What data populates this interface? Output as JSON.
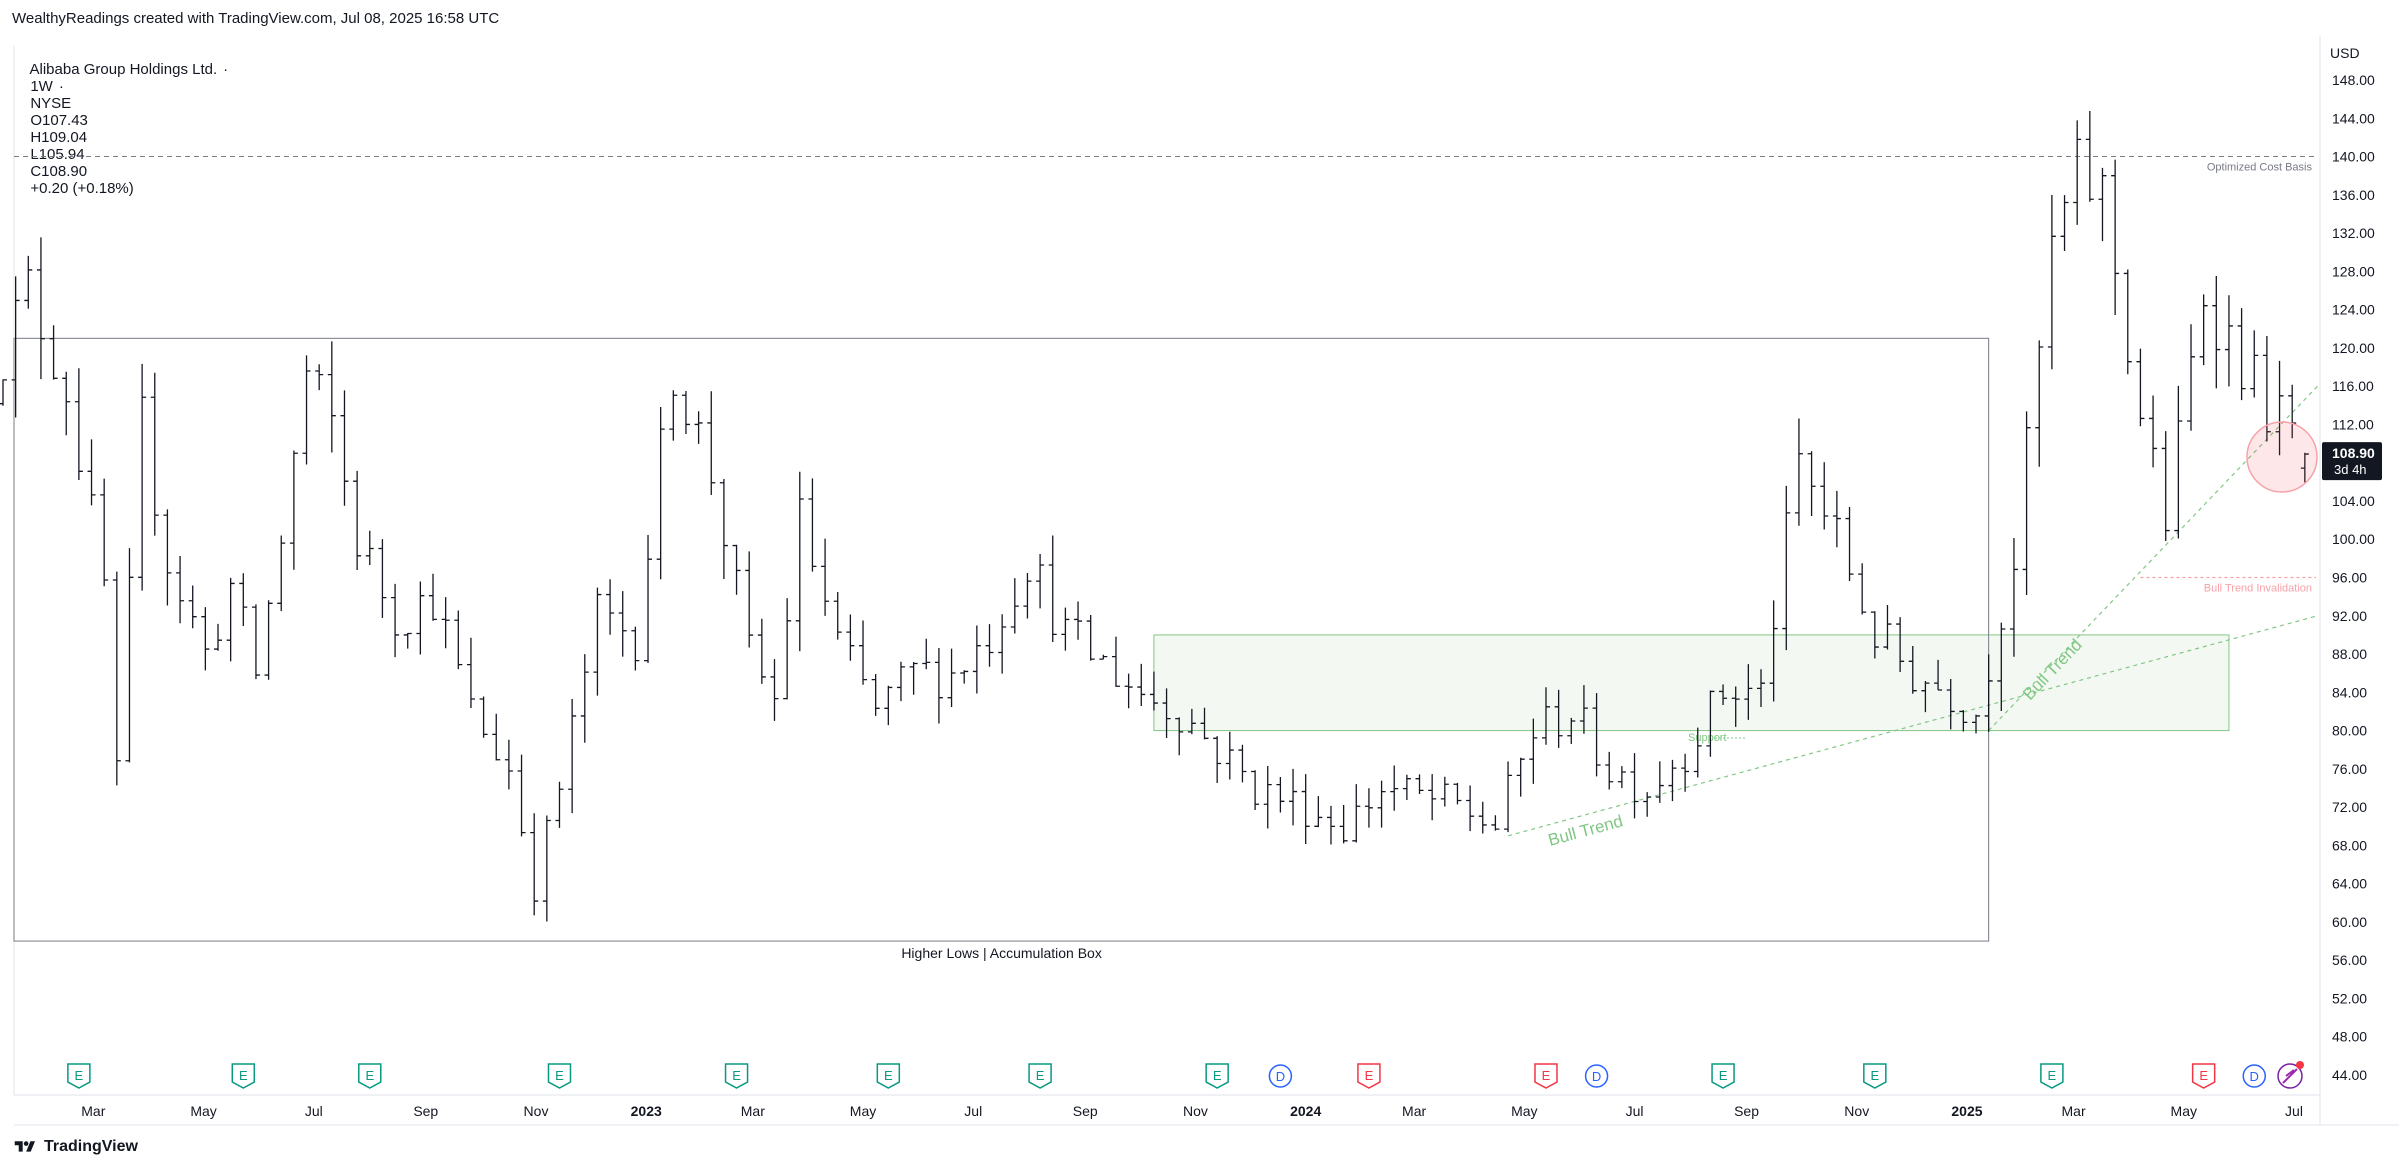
{
  "header": {
    "caption": "WealthyReadings created with TradingView.com, Jul 08, 2025 16:58 UTC"
  },
  "legend": {
    "name": "Alibaba Group Holdings Ltd.",
    "interval": "1W",
    "exchange": "NYSE",
    "open": "O107.43",
    "high": "H109.04",
    "low": "L105.94",
    "close": "C108.90",
    "change": "+0.20 (+0.18%)"
  },
  "price_axis": {
    "currency": "USD",
    "last_price": "108.90",
    "countdown": "3d 4h"
  },
  "footer": {
    "brand": "TradingView"
  },
  "colors": {
    "bar": "#131722",
    "earnings": "#089981",
    "earnings_red": "#f23645",
    "dividend": "#2962ff",
    "zone_fill": "#e9f3e9",
    "zone_border": "#81c784",
    "trendline": "#81c784",
    "invalidation": "#f7a1a8",
    "box_border": "#787b86"
  },
  "chart_data": {
    "type": "ohlc",
    "interval": "1W",
    "ylim": [
      42,
      150
    ],
    "y_ticks": [
      44,
      48,
      52,
      56,
      60,
      64,
      68,
      72,
      76,
      80,
      84,
      88,
      92,
      96,
      100,
      104,
      108,
      112,
      116,
      120,
      124,
      128,
      132,
      136,
      140,
      144,
      148
    ],
    "x_ticks": [
      {
        "label": "Mar",
        "date": "2022-03-01"
      },
      {
        "label": "May",
        "date": "2022-05-01"
      },
      {
        "label": "Jul",
        "date": "2022-07-01"
      },
      {
        "label": "Sep",
        "date": "2022-09-01"
      },
      {
        "label": "Nov",
        "date": "2022-11-01"
      },
      {
        "label": "2023",
        "date": "2023-01-01",
        "bold": true
      },
      {
        "label": "Mar",
        "date": "2023-03-01"
      },
      {
        "label": "May",
        "date": "2023-05-01"
      },
      {
        "label": "Jul",
        "date": "2023-07-01"
      },
      {
        "label": "Sep",
        "date": "2023-09-01"
      },
      {
        "label": "Nov",
        "date": "2023-11-01"
      },
      {
        "label": "2024",
        "date": "2024-01-01",
        "bold": true
      },
      {
        "label": "Mar",
        "date": "2024-03-01"
      },
      {
        "label": "May",
        "date": "2024-05-01"
      },
      {
        "label": "Jul",
        "date": "2024-07-01"
      },
      {
        "label": "Sep",
        "date": "2024-09-01"
      },
      {
        "label": "Nov",
        "date": "2024-11-01"
      },
      {
        "label": "2025",
        "date": "2025-01-01",
        "bold": true
      },
      {
        "label": "Mar",
        "date": "2025-03-01"
      },
      {
        "label": "May",
        "date": "2025-05-01"
      },
      {
        "label": "Jul",
        "date": "2025-07-01"
      }
    ],
    "path": [
      [
        "2022-01-03",
        117
      ],
      [
        "2022-01-24",
        126
      ],
      [
        "2022-02-14",
        116
      ],
      [
        "2022-03-07",
        95
      ],
      [
        "2022-03-14",
        75
      ],
      [
        "2022-03-28",
        112
      ],
      [
        "2022-04-11",
        98
      ],
      [
        "2022-05-02",
        88
      ],
      [
        "2022-05-16",
        95
      ],
      [
        "2022-05-30",
        86
      ],
      [
        "2022-06-13",
        100
      ],
      [
        "2022-06-27",
        117
      ],
      [
        "2022-07-11",
        112
      ],
      [
        "2022-07-25",
        100
      ],
      [
        "2022-08-15",
        92
      ],
      [
        "2022-09-05",
        94
      ],
      [
        "2022-09-26",
        82
      ],
      [
        "2022-10-17",
        76
      ],
      [
        "2022-10-31",
        64
      ],
      [
        "2022-11-14",
        74
      ],
      [
        "2022-12-05",
        92
      ],
      [
        "2022-12-26",
        90
      ],
      [
        "2023-01-16",
        118
      ],
      [
        "2023-02-06",
        107
      ],
      [
        "2023-02-27",
        88
      ],
      [
        "2023-03-13",
        83
      ],
      [
        "2023-03-27",
        102
      ],
      [
        "2023-04-17",
        89
      ],
      [
        "2023-05-08",
        82
      ],
      [
        "2023-05-29",
        86
      ],
      [
        "2023-06-19",
        86
      ],
      [
        "2023-07-10",
        90
      ],
      [
        "2023-07-31",
        98
      ],
      [
        "2023-08-21",
        90
      ],
      [
        "2023-09-11",
        87
      ],
      [
        "2023-10-02",
        84
      ],
      [
        "2023-10-23",
        82
      ],
      [
        "2023-11-13",
        78
      ],
      [
        "2023-12-04",
        74
      ],
      [
        "2024-01-01",
        72
      ],
      [
        "2024-01-22",
        70
      ],
      [
        "2024-02-12",
        74
      ],
      [
        "2024-03-04",
        73
      ],
      [
        "2024-03-25",
        72
      ],
      [
        "2024-04-15",
        70
      ],
      [
        "2024-05-06",
        80
      ],
      [
        "2024-05-27",
        82
      ],
      [
        "2024-06-17",
        76
      ],
      [
        "2024-07-08",
        74
      ],
      [
        "2024-07-29",
        78
      ],
      [
        "2024-08-19",
        84
      ],
      [
        "2024-09-09",
        84
      ],
      [
        "2024-09-30",
        108
      ],
      [
        "2024-10-21",
        100
      ],
      [
        "2024-11-11",
        90
      ],
      [
        "2024-12-02",
        86
      ],
      [
        "2024-12-23",
        84
      ],
      [
        "2025-01-06",
        82
      ],
      [
        "2025-01-27",
        98
      ],
      [
        "2025-02-17",
        130
      ],
      [
        "2025-03-03",
        138
      ],
      [
        "2025-03-17",
        136
      ],
      [
        "2025-04-07",
        113
      ],
      [
        "2025-04-21",
        102
      ],
      [
        "2025-05-12",
        126
      ],
      [
        "2025-05-26",
        121
      ],
      [
        "2025-06-16",
        114
      ],
      [
        "2025-07-07",
        108.9
      ]
    ],
    "last_bar": {
      "date": "2025-07-07",
      "open": 107.43,
      "high": 109.04,
      "low": 105.94,
      "close": 108.9
    },
    "annotations": {
      "accumulation_box": {
        "label": "Higher Lows | Accumulation Box",
        "from": "2022-01-03",
        "to": "2025-01-13",
        "top": 121,
        "bottom": 58
      },
      "support_zone": {
        "label": "Support",
        "from": "2023-10-09",
        "to": "2025-05-26",
        "top": 90,
        "bottom": 80
      },
      "cost_basis": {
        "label": "Optimized Cost Basis",
        "price": 140
      },
      "invalidation": {
        "label": "Bull Trend Invalidation",
        "price": 96,
        "from": "2025-04-07"
      },
      "trend_1": {
        "label": "Bull Trend",
        "from": [
          "2024-04-22",
          69
        ],
        "to": [
          "2025-07-14",
          92
        ]
      },
      "trend_2": {
        "label": "Bull Trend",
        "from": [
          "2025-01-13",
          80
        ],
        "to": [
          "2025-07-14",
          116
        ]
      }
    },
    "events": [
      {
        "type": "E",
        "date": "2022-02-21"
      },
      {
        "type": "E",
        "date": "2022-05-23"
      },
      {
        "type": "E",
        "date": "2022-08-01"
      },
      {
        "type": "E",
        "date": "2022-11-14"
      },
      {
        "type": "E",
        "date": "2023-02-20"
      },
      {
        "type": "E",
        "date": "2023-05-15"
      },
      {
        "type": "E",
        "date": "2023-08-07"
      },
      {
        "type": "E",
        "date": "2023-11-13"
      },
      {
        "type": "D",
        "date": "2023-12-18"
      },
      {
        "type": "E_red",
        "date": "2024-02-05"
      },
      {
        "type": "E_red",
        "date": "2024-05-13"
      },
      {
        "type": "D",
        "date": "2024-06-10"
      },
      {
        "type": "E",
        "date": "2024-08-19"
      },
      {
        "type": "E",
        "date": "2024-11-11"
      },
      {
        "type": "E",
        "date": "2025-02-17"
      },
      {
        "type": "E_red",
        "date": "2025-05-12"
      },
      {
        "type": "D",
        "date": "2025-06-09"
      }
    ]
  }
}
